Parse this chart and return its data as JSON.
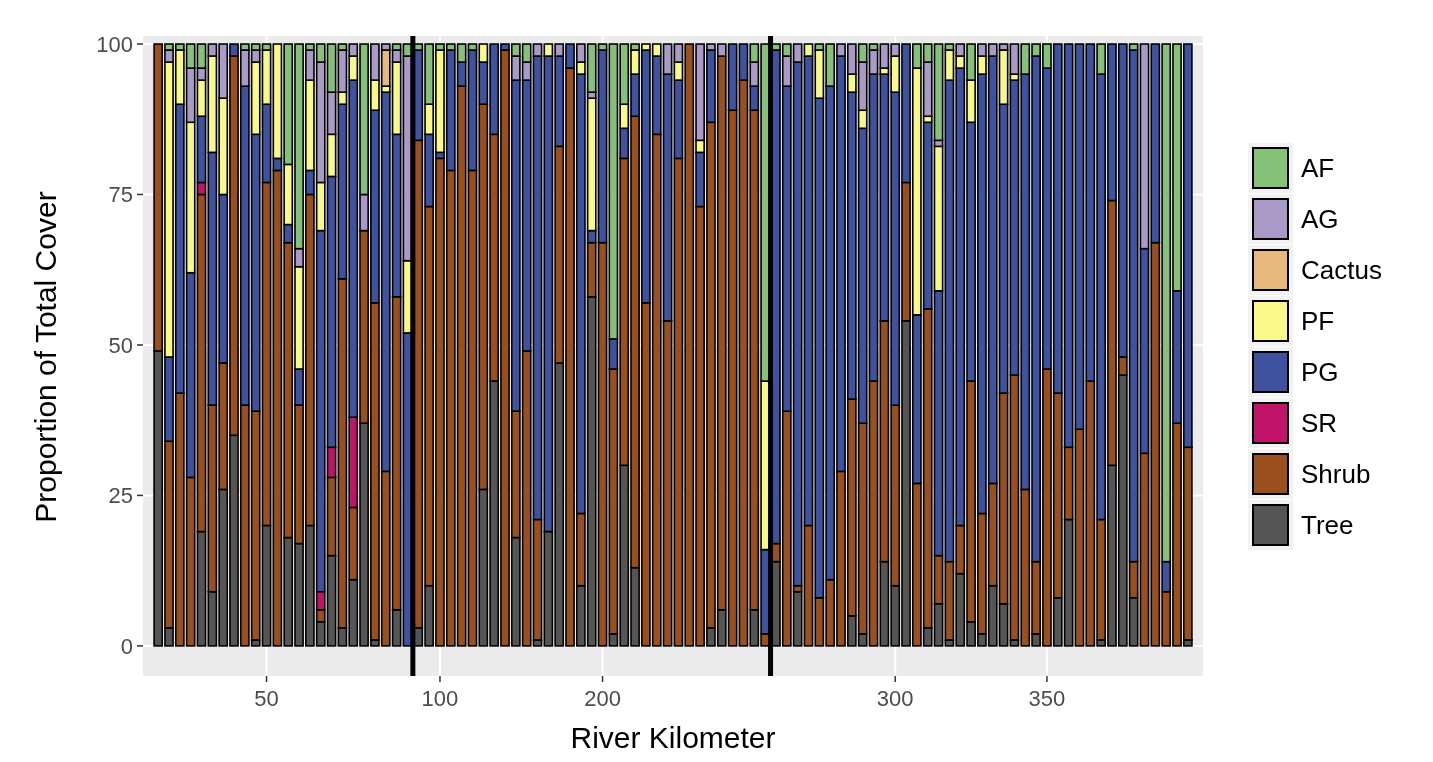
{
  "chart_data": {
    "type": "bar",
    "stacked": true,
    "xlabel": "River Kilometer",
    "ylabel": "Proportion of Total Cover",
    "categories": [
      null,
      null,
      null,
      null,
      null,
      null,
      null,
      null,
      null,
      null,
      "50",
      null,
      null,
      null,
      null,
      null,
      null,
      null,
      null,
      null,
      null,
      null,
      null,
      null,
      null,
      null,
      "100",
      null,
      null,
      null,
      null,
      null,
      null,
      null,
      null,
      null,
      null,
      null,
      null,
      null,
      null,
      "200",
      null,
      null,
      null,
      null,
      null,
      null,
      null,
      null,
      null,
      null,
      null,
      null,
      null,
      null,
      null,
      null,
      null,
      null,
      null,
      null,
      null,
      null,
      null,
      null,
      null,
      null,
      "300",
      null,
      null,
      null,
      null,
      null,
      null,
      null,
      null,
      null,
      null,
      null,
      null,
      null,
      "350",
      null,
      null,
      null,
      null,
      null,
      null,
      null,
      null,
      null,
      null,
      null,
      null,
      null
    ],
    "ylim": [
      -5,
      101
    ],
    "yticks": [
      0,
      25,
      50,
      75,
      100
    ],
    "grid": true,
    "legend": "right",
    "series": [
      {
        "name": "Tree",
        "color": "#555555",
        "values": [
          49,
          3,
          0,
          0,
          19,
          9,
          26,
          35,
          0,
          1,
          20,
          0,
          18,
          17,
          20,
          4,
          15,
          3,
          11,
          37,
          1,
          0,
          6,
          0,
          3,
          10,
          0,
          0,
          0,
          0,
          26,
          44,
          0,
          18,
          0,
          1,
          19,
          47,
          0,
          10,
          58,
          0,
          2,
          30,
          13,
          0,
          0,
          0,
          0,
          0,
          0,
          3,
          6,
          0,
          0,
          6,
          0,
          14,
          0,
          9,
          0,
          0,
          0,
          0,
          5,
          2,
          0,
          14,
          10,
          54,
          0,
          3,
          7,
          1,
          12,
          4,
          2,
          10,
          7,
          1,
          0,
          2,
          0,
          8,
          21,
          0,
          0,
          1,
          30,
          45,
          8,
          0,
          0,
          0,
          0,
          1
        ]
      },
      {
        "name": "Shrub",
        "color": "#9a4f1e",
        "values": [
          51,
          31,
          42,
          28,
          56,
          31,
          21,
          63,
          40,
          38,
          57,
          79,
          49,
          23,
          55,
          2,
          13,
          58,
          12,
          32,
          56,
          29,
          52,
          0,
          81,
          63,
          81,
          79,
          93,
          79,
          64,
          41,
          99,
          21,
          49,
          20,
          0,
          36,
          96,
          12,
          9,
          67,
          44,
          51,
          75,
          57,
          85,
          54,
          81,
          100,
          73,
          84,
          92,
          89,
          94,
          83,
          2,
          3,
          39,
          1,
          20,
          8,
          11,
          29,
          36,
          35,
          44,
          40,
          30,
          23,
          27,
          53,
          8,
          13,
          8,
          40,
          20,
          17,
          35,
          44,
          26,
          12,
          46,
          34,
          12,
          36,
          44,
          20,
          44,
          3,
          6,
          32,
          67,
          9,
          37,
          32
        ]
      },
      {
        "name": "SR",
        "color": "#c0136a",
        "values": [
          0,
          0,
          0,
          0,
          2,
          0,
          0,
          0,
          0,
          0,
          0,
          0,
          0,
          0,
          0,
          3,
          5,
          0,
          15,
          0,
          0,
          0,
          0,
          0,
          0,
          0,
          0,
          0,
          0,
          0,
          0,
          0,
          0,
          0,
          0,
          0,
          0,
          0,
          0,
          0,
          0,
          0,
          0,
          0,
          0,
          0,
          0,
          0,
          0,
          0,
          0,
          0,
          0,
          0,
          0,
          0,
          0,
          0,
          0,
          0,
          0,
          0,
          0,
          0,
          0,
          0,
          0,
          0,
          0,
          0,
          0,
          0,
          0,
          0,
          0,
          0,
          0,
          0,
          0,
          0,
          0,
          0,
          0,
          0,
          0,
          0,
          0,
          0,
          0,
          0,
          0,
          0,
          0,
          0,
          0,
          0
        ]
      },
      {
        "name": "PG",
        "color": "#3f52a0",
        "values": [
          0,
          14,
          48,
          34,
          11,
          42,
          28,
          2,
          53,
          46,
          13,
          2,
          3,
          6,
          4,
          60,
          45,
          29,
          56,
          0,
          32,
          63,
          27,
          52,
          15,
          12,
          1,
          20,
          4,
          20,
          7,
          15,
          1,
          55,
          45,
          77,
          79,
          15,
          4,
          73,
          2,
          32,
          5,
          5,
          7,
          42,
          13,
          41,
          13,
          0,
          9,
          12,
          0,
          11,
          6,
          4,
          14,
          82,
          54,
          87,
          78,
          83,
          82,
          69,
          51,
          49,
          51,
          41,
          52,
          23,
          28,
          31,
          44,
          80,
          76,
          43,
          73,
          71,
          48,
          49,
          69,
          84,
          50,
          58,
          67,
          64,
          56,
          74,
          26,
          52,
          85,
          34,
          33,
          5,
          22,
          67
        ]
      },
      {
        "name": "PF",
        "color": "#f9f98a",
        "values": [
          0,
          49,
          9,
          25,
          6,
          16,
          16,
          0,
          0,
          12,
          9,
          19,
          10,
          17,
          15,
          8,
          7,
          2,
          4,
          0,
          5,
          1,
          12,
          12,
          0,
          5,
          17,
          0,
          0,
          0,
          3,
          0,
          0,
          0,
          0,
          0,
          2,
          0,
          0,
          2,
          22,
          0,
          0,
          4,
          4,
          1,
          2,
          0,
          3,
          0,
          2,
          0,
          0,
          0,
          0,
          0,
          28,
          0,
          0,
          0,
          2,
          8,
          0,
          0,
          3,
          3,
          0,
          1,
          6,
          0,
          41,
          1,
          24,
          5,
          2,
          7,
          3,
          0,
          9,
          1,
          0,
          0,
          0,
          0,
          0,
          0,
          0,
          0,
          0,
          0,
          0,
          0,
          0,
          0,
          0,
          0
        ]
      },
      {
        "name": "Cactus",
        "color": "#e6b87c",
        "values": [
          0,
          0,
          0,
          0,
          0,
          0,
          0,
          0,
          0,
          0,
          0,
          0,
          0,
          0,
          0,
          0,
          0,
          0,
          0,
          0,
          0,
          6,
          0,
          0,
          0,
          0,
          0,
          0,
          0,
          0,
          0,
          0,
          0,
          0,
          0,
          0,
          0,
          0,
          0,
          0,
          0,
          0,
          0,
          0,
          0,
          0,
          0,
          0,
          0,
          0,
          0,
          0,
          0,
          0,
          0,
          0,
          0,
          0,
          0,
          0,
          0,
          0,
          0,
          0,
          0,
          0,
          0,
          0,
          0,
          0,
          0,
          0,
          0,
          0,
          0,
          0,
          0,
          0,
          0,
          0,
          0,
          0,
          0,
          0,
          0,
          0,
          0,
          0,
          0,
          0,
          0,
          0,
          0,
          0,
          0,
          0
        ]
      },
      {
        "name": "AG",
        "color": "#a99ac8",
        "values": [
          0,
          2,
          0,
          9,
          2,
          2,
          9,
          0,
          6,
          2,
          0,
          0,
          0,
          3,
          5,
          20,
          7,
          7,
          2,
          6,
          6,
          1,
          2,
          34,
          0,
          0,
          0,
          0,
          0,
          0,
          0,
          0,
          0,
          4,
          3,
          2,
          0,
          2,
          0,
          3,
          1,
          0,
          0,
          0,
          0,
          0,
          0,
          5,
          3,
          0,
          16,
          1,
          2,
          0,
          0,
          4,
          0,
          0,
          5,
          3,
          0,
          0,
          0,
          2,
          5,
          8,
          4,
          4,
          2,
          0,
          0,
          9,
          1,
          0,
          2,
          0,
          2,
          2,
          1,
          5,
          0,
          0,
          0,
          0,
          0,
          0,
          0,
          0,
          0,
          0,
          0,
          34,
          0,
          0,
          0,
          0
        ]
      },
      {
        "name": "AF",
        "color": "#86c17a",
        "values": [
          0,
          1,
          1,
          4,
          4,
          0,
          0,
          0,
          1,
          1,
          1,
          0,
          20,
          34,
          1,
          3,
          8,
          1,
          0,
          25,
          0,
          0,
          1,
          2,
          1,
          10,
          1,
          1,
          3,
          1,
          0,
          0,
          0,
          2,
          3,
          0,
          0,
          0,
          0,
          0,
          8,
          1,
          49,
          10,
          1,
          0,
          0,
          0,
          0,
          0,
          0,
          0,
          0,
          0,
          0,
          3,
          56,
          1,
          2,
          0,
          0,
          1,
          7,
          0,
          0,
          3,
          1,
          0,
          0,
          0,
          4,
          3,
          16,
          1,
          0,
          6,
          0,
          0,
          0,
          0,
          5,
          2,
          4,
          0,
          0,
          0,
          0,
          5,
          0,
          0,
          1,
          0,
          0,
          86,
          41,
          0
        ]
      }
    ]
  }
}
